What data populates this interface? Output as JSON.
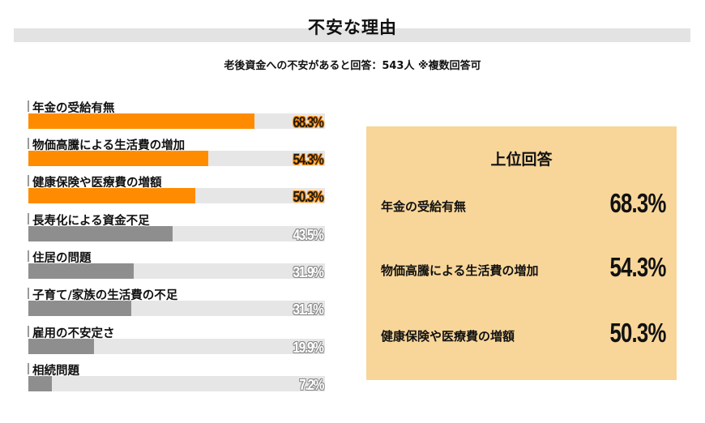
{
  "header": {
    "title": "不安な理由",
    "subtitle": "老後資金への不安があると回答：543人 ※複数回答可"
  },
  "colors": {
    "highlight_bar": "#ff8c00",
    "other_bar": "#8e8e8e",
    "track": "#e6e6e6",
    "title_band": "#e3e3e3",
    "panel_bg": "#f8d699"
  },
  "bars": [
    {
      "label": "年金の受給有無",
      "value": 68.3,
      "display": "68.3%",
      "highlight": true
    },
    {
      "label": "物価高騰による生活費の増加",
      "value": 54.3,
      "display": "54.3%",
      "highlight": true
    },
    {
      "label": "健康保険や医療費の増額",
      "value": 50.3,
      "display": "50.3%",
      "highlight": true
    },
    {
      "label": "長寿化による資金不足",
      "value": 43.5,
      "display": "43.5%",
      "highlight": false
    },
    {
      "label": "住居の問題",
      "value": 31.9,
      "display": "31.9%",
      "highlight": false
    },
    {
      "label": "子育て/家族の生活費の不足",
      "value": 31.1,
      "display": "31.1%",
      "highlight": false
    },
    {
      "label": "雇用の不安定さ",
      "value": 19.9,
      "display": "19.9%",
      "highlight": false
    },
    {
      "label": "相続問題",
      "value": 7.2,
      "display": "7.2%",
      "highlight": false
    }
  ],
  "panel": {
    "title": "上位回答",
    "items": [
      {
        "label": "年金の受給有無",
        "value": "68.3%"
      },
      {
        "label": "物価高騰による生活費の増加",
        "value": "54.3%"
      },
      {
        "label": "健康保険や医療費の増額",
        "value": "50.3%"
      }
    ]
  },
  "chart_data": {
    "type": "bar",
    "orientation": "horizontal",
    "title": "不安な理由",
    "subtitle": "老後資金への不安があると回答：543人 ※複数回答可",
    "categories": [
      "年金の受給有無",
      "物価高騰による生活費の増加",
      "健康保険や医療費の増額",
      "長寿化による資金不足",
      "住居の問題",
      "子育て/家族の生活費の不足",
      "雇用の不安定さ",
      "相続問題"
    ],
    "values": [
      68.3,
      54.3,
      50.3,
      43.5,
      31.9,
      31.1,
      19.9,
      7.2
    ],
    "unit": "%",
    "xlabel": "",
    "ylabel": "",
    "xlim": [
      0,
      89.5
    ],
    "grid": false,
    "highlighted_top_n": 3,
    "annotation_panel": {
      "title": "上位回答",
      "entries": [
        "年金の受給有無 68.3%",
        "物価高騰による生活費の増加 54.3%",
        "健康保険や医療費の増額 50.3%"
      ]
    }
  }
}
